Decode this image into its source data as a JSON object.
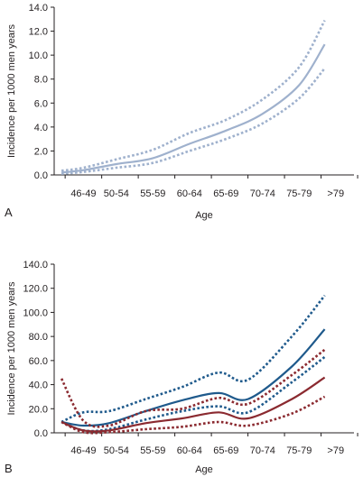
{
  "chart_data": [
    {
      "type": "line",
      "panel_label": "A",
      "xlabel": "Age",
      "ylabel": "Incidence per 1000 men years",
      "categories": [
        "46-49",
        "50-54",
        "55-59",
        "60-64",
        "65-69",
        "70-74",
        "75-79",
        ">79"
      ],
      "ylim": [
        0,
        14
      ],
      "y_ticks": [
        "0.0",
        "2.0",
        "4.0",
        "6.0",
        "8.0",
        "10.0",
        "12.0",
        "14.0"
      ],
      "grid": false,
      "legend": "none",
      "colors": {
        "estimate": "#9fb1cd",
        "bounds": "#9fb1cd"
      },
      "series": [
        {
          "role": "estimate",
          "style": "solid",
          "x": [
            44.5,
            47.5,
            52,
            57,
            62,
            67,
            72,
            77,
            80.5
          ],
          "values": [
            0.2,
            0.4,
            0.9,
            1.4,
            2.6,
            3.7,
            5.1,
            7.5,
            10.9
          ]
        },
        {
          "role": "upper bound",
          "style": "dotted",
          "x": [
            44.5,
            47.5,
            52,
            57,
            62,
            67,
            72,
            77,
            80.5
          ],
          "values": [
            0.35,
            0.6,
            1.3,
            2.1,
            3.5,
            4.6,
            6.3,
            9.0,
            12.9
          ]
        },
        {
          "role": "lower bound",
          "style": "dotted",
          "x": [
            44.5,
            47.5,
            52,
            57,
            62,
            67,
            72,
            77,
            80.5
          ],
          "values": [
            0.1,
            0.25,
            0.6,
            1.0,
            2.0,
            3.0,
            4.3,
            6.4,
            8.9
          ]
        }
      ]
    },
    {
      "type": "line",
      "panel_label": "B",
      "xlabel": "Age",
      "ylabel": "Incidence per 1000 men years",
      "categories": [
        "46-49",
        "50-54",
        "55-59",
        "60-64",
        "65-69",
        "70-74",
        "75-79",
        ">79"
      ],
      "ylim": [
        0,
        140
      ],
      "y_ticks": [
        "0.0",
        "20.0",
        "40.0",
        "60.0",
        "80.0",
        "100.0",
        "120.0",
        "140.0"
      ],
      "grid": false,
      "legend": "none",
      "colors": {
        "blue": "#1f5a8c",
        "red": "#8b2a30"
      },
      "series": [
        {
          "color": "blue",
          "role": "estimate",
          "style": "solid",
          "x": [
            44.5,
            47.5,
            51,
            56,
            61,
            66,
            70,
            76,
            80.5
          ],
          "values": [
            9,
            6,
            8,
            18,
            27,
            33,
            28,
            55,
            86
          ]
        },
        {
          "color": "blue",
          "role": "upper bound",
          "style": "dotted",
          "x": [
            44.5,
            47.5,
            51,
            56,
            61,
            66,
            70,
            76,
            80.5
          ],
          "values": [
            9,
            17,
            18,
            28,
            38,
            50,
            44,
            80,
            114
          ]
        },
        {
          "color": "blue",
          "role": "lower bound",
          "style": "dotted",
          "x": [
            44.5,
            47.5,
            51,
            56,
            61,
            66,
            70,
            76,
            80.5
          ],
          "values": [
            9,
            2,
            3,
            11,
            18,
            22,
            17,
            42,
            63
          ]
        },
        {
          "color": "red",
          "role": "estimate",
          "style": "solid",
          "x": [
            44.5,
            47.5,
            51,
            56,
            61,
            66,
            70,
            76,
            80.5
          ],
          "values": [
            9,
            2,
            2,
            8,
            12,
            17,
            12,
            28,
            46
          ]
        },
        {
          "color": "red",
          "role": "upper bound",
          "style": "dotted",
          "x": [
            44.5,
            47.5,
            51,
            56,
            61,
            66,
            70,
            76,
            80.5
          ],
          "values": [
            45,
            10,
            6,
            18,
            20,
            29,
            24,
            48,
            69
          ]
        },
        {
          "color": "red",
          "role": "lower bound",
          "style": "dotted",
          "x": [
            44.5,
            47.5,
            51,
            56,
            61,
            66,
            70,
            76,
            80.5
          ],
          "values": [
            9,
            0.5,
            0.5,
            3,
            5,
            9,
            6,
            16,
            30
          ]
        }
      ]
    }
  ]
}
